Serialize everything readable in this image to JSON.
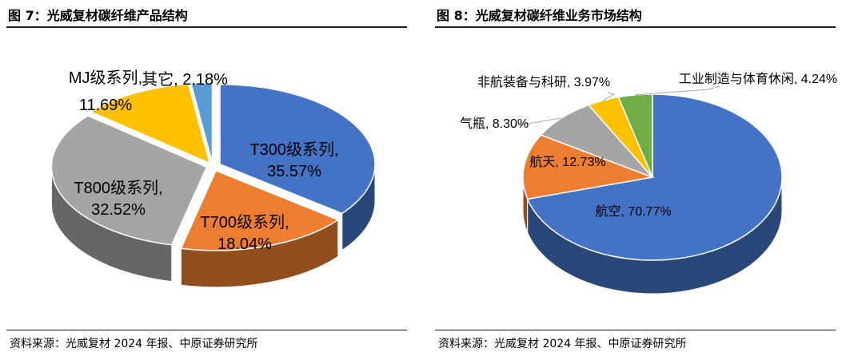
{
  "figures": [
    {
      "title": "图 7：光威复材碳纤维产品结构",
      "source": "资料来源：光威复材 2024 年报、中原证券研究所"
    },
    {
      "title": "图 8：光威复材碳纤维业务市场结构",
      "source": "资料来源：光威复材 2024 年报、中原证券研究所"
    }
  ],
  "chart_data": [
    {
      "type": "pie",
      "variant": "3d-exploded",
      "title": "图 7：光威复材碳纤维产品结构",
      "slices": [
        {
          "label": "T300级系列,\n35.57%",
          "name": "T300级系列",
          "value": 35.57,
          "color": "#4472C4"
        },
        {
          "label": "T700级系列,\n18.04%",
          "name": "T700级系列",
          "value": 18.04,
          "color": "#ED7D31"
        },
        {
          "label": "T800级系列,\n32.52%",
          "name": "T800级系列",
          "value": 32.52,
          "color": "#A5A5A5"
        },
        {
          "label": "MJ级系列,\n11.69%",
          "name": "MJ级系列",
          "value": 11.69,
          "color": "#FFC000"
        },
        {
          "label": "其它, 2.18%",
          "name": "其它",
          "value": 2.18,
          "color": "#5B9BD5"
        }
      ]
    },
    {
      "type": "pie",
      "variant": "3d",
      "title": "图 8：光威复材碳纤维业务市场结构",
      "slices": [
        {
          "label": "航空, 70.77%",
          "name": "航空",
          "value": 70.77,
          "color": "#4472C4"
        },
        {
          "label": "航天, 12.73%",
          "name": "航天",
          "value": 12.73,
          "color": "#ED7D31"
        },
        {
          "label": "气瓶, 8.30%",
          "name": "气瓶",
          "value": 8.3,
          "color": "#A5A5A5"
        },
        {
          "label": "非航装备与科研, 3.97%",
          "name": "非航装备与科研",
          "value": 3.97,
          "color": "#FFC000"
        },
        {
          "label": "工业制造与体育休闲, 4.24%",
          "name": "工业制造与体育休闲",
          "value": 4.24,
          "color": "#70AD47"
        }
      ]
    }
  ]
}
